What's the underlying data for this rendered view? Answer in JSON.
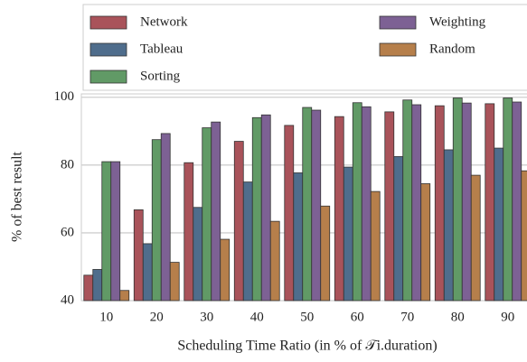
{
  "chart_data": {
    "type": "bar",
    "x_label": "Scheduling Time Ratio (in % of 𝒯i.duration)",
    "y_label": "% of best result",
    "categories": [
      "10",
      "20",
      "30",
      "40",
      "50",
      "60",
      "70",
      "80",
      "90"
    ],
    "series": [
      {
        "name": "Network",
        "color": "#a9535a",
        "values": [
          47.5,
          66.8,
          80.7,
          87,
          91.7,
          94.3,
          95.7,
          97.5,
          98.1
        ]
      },
      {
        "name": "Tableau",
        "color": "#4f6d8c",
        "values": [
          49.2,
          56.8,
          67.5,
          75,
          77.7,
          79.4,
          82.5,
          84.5,
          85
        ]
      },
      {
        "name": "Sorting",
        "color": "#619a66",
        "values": [
          81,
          87.5,
          91,
          94,
          97,
          98.4,
          99.2,
          99.8,
          99.8
        ]
      },
      {
        "name": "Weighting",
        "color": "#7d6194",
        "values": [
          81,
          89.3,
          92.7,
          94.8,
          96.2,
          97.2,
          97.8,
          98.3,
          98.6
        ]
      },
      {
        "name": "Random",
        "color": "#b67f4b",
        "values": [
          43,
          51.3,
          58.1,
          63.4,
          67.9,
          72.2,
          74.5,
          77,
          78.3
        ]
      }
    ],
    "ylim": [
      40,
      101
    ],
    "yticks": [
      40,
      60,
      80,
      100
    ],
    "grid": true,
    "legend": "top"
  }
}
